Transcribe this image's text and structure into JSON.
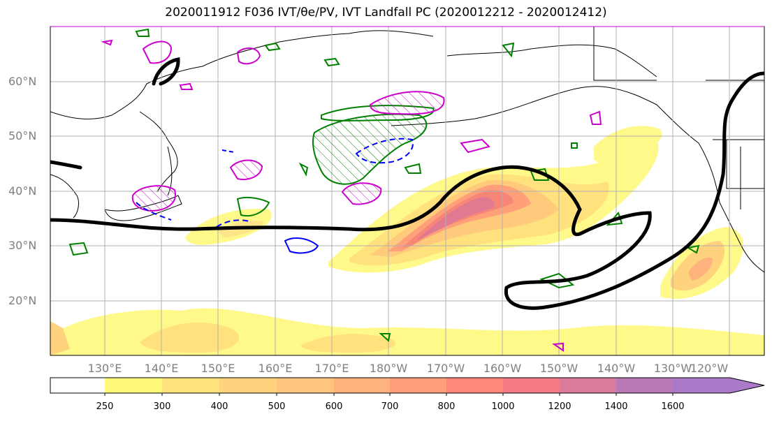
{
  "title": "2020011912 F036 IVT/θe/PV, IVT Landfall PC (2020012212 - 2020012412)",
  "map": {
    "lat_labels": [
      "60°N",
      "50°N",
      "40°N",
      "30°N",
      "20°N"
    ],
    "lon_labels": [
      "130°E",
      "140°E",
      "150°E",
      "160°E",
      "170°E",
      "180°W",
      "170°W",
      "160°W",
      "150°W",
      "140°W",
      "130°W",
      "120°W"
    ]
  },
  "colorbar": {
    "ticks": [
      "250",
      "300",
      "400",
      "500",
      "600",
      "700",
      "800",
      "1000",
      "1200",
      "1400",
      "1600"
    ],
    "colors": [
      "#ffffff",
      "#fffa7a",
      "#ffe47c",
      "#ffd27e",
      "#ffc47e",
      "#ffb37c",
      "#ff9e7a",
      "#ff8878",
      "#f47a86",
      "#dc7a9c",
      "#b87ab6",
      "#a87ac8"
    ]
  },
  "colors": {
    "ivt_contour": "#000000",
    "theta_e": "#008000",
    "pv_pos": "#cc00cc",
    "pv_neg": "#0000ff"
  }
}
